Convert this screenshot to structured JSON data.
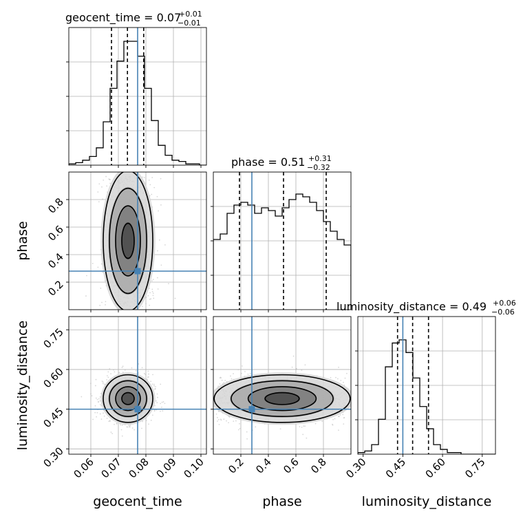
{
  "chart_data": {
    "type": "corner",
    "parameters": [
      "geocent_time",
      "phase",
      "luminosity_distance"
    ],
    "truths": {
      "geocent_time": 0.077,
      "phase": 0.28,
      "luminosity_distance": 0.45
    },
    "truth_color": "#4682b4",
    "hist_color": "#000000",
    "axis_labels": {
      "geocent_time": "geocent_time",
      "phase": "phase",
      "luminosity_distance": "luminosity_distance"
    },
    "titles": [
      {
        "param": "geocent_time",
        "text": "geocent_time = 0.07",
        "plus": "+0.01",
        "minus": "−0.01"
      },
      {
        "param": "phase",
        "text": "phase = 0.51",
        "plus": "+0.31",
        "minus": "−0.32"
      },
      {
        "param": "luminosity_distance",
        "text": "luminosity_distance = 0.49",
        "plus": "+0.06",
        "minus": "−0.06"
      }
    ],
    "ranges": {
      "geocent_time": [
        0.052,
        0.102
      ],
      "phase": [
        0.0,
        1.0
      ],
      "luminosity_distance": [
        0.28,
        0.8
      ]
    },
    "ticks": {
      "geocent_time": [
        {
          "v": 0.06,
          "label": "0.06"
        },
        {
          "v": 0.07,
          "label": "0.07"
        },
        {
          "v": 0.08,
          "label": "0.08"
        },
        {
          "v": 0.09,
          "label": "0.09"
        },
        {
          "v": 0.1,
          "label": "0.10"
        }
      ],
      "phase": [
        {
          "v": 0.2,
          "label": "0.2"
        },
        {
          "v": 0.4,
          "label": "0.4"
        },
        {
          "v": 0.6,
          "label": "0.6"
        },
        {
          "v": 0.8,
          "label": "0.8"
        }
      ],
      "luminosity_distance": [
        {
          "v": 0.3,
          "label": "0.30"
        },
        {
          "v": 0.45,
          "label": "0.45"
        },
        {
          "v": 0.6,
          "label": "0.60"
        },
        {
          "v": 0.75,
          "label": "0.75"
        }
      ]
    },
    "quantiles": {
      "geocent_time": [
        0.0675,
        0.0733,
        0.0792
      ],
      "phase": [
        0.19,
        0.51,
        0.82
      ],
      "luminosity_distance": [
        0.43,
        0.487,
        0.547
      ]
    },
    "histograms": {
      "geocent_time": [
        1,
        2,
        4,
        7,
        14,
        35,
        62,
        84,
        100,
        100,
        88,
        62,
        36,
        16,
        8,
        4,
        3,
        1,
        1,
        0
      ],
      "phase": [
        51,
        55,
        70,
        76,
        78,
        76,
        70,
        74,
        72,
        68,
        74,
        80,
        84,
        82,
        78,
        72,
        64,
        57,
        51,
        47
      ],
      "luminosity_distance": [
        1,
        2,
        6,
        22,
        55,
        70,
        72,
        64,
        48,
        30,
        16,
        6,
        3,
        1,
        1,
        0,
        0,
        0,
        0,
        0
      ]
    },
    "hist_max": {
      "geocent_time": 100,
      "phase": 90,
      "luminosity_distance": 78
    },
    "grid": true,
    "legend": "none"
  }
}
